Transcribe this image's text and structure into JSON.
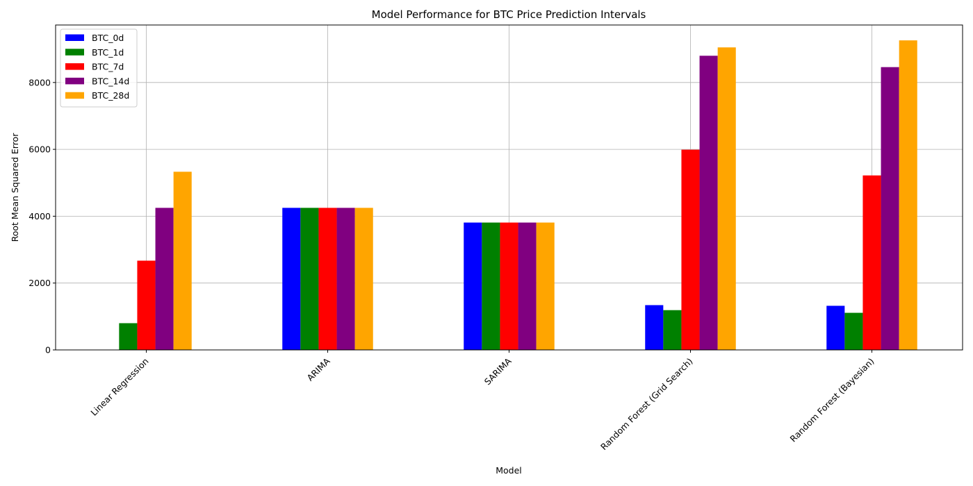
{
  "chart_data": {
    "type": "bar",
    "title": "Model Performance for BTC Price Prediction Intervals",
    "xlabel": "Model",
    "ylabel": "Root Mean Squared Error",
    "categories": [
      "Linear Regression",
      "ARIMA",
      "SARIMA",
      "Random Forest (Grid Search)",
      "Random Forest (Bayesian)"
    ],
    "series": [
      {
        "name": "BTC_0d",
        "color": "#0000ff",
        "values": [
          0,
          4250,
          3810,
          1340,
          1320
        ]
      },
      {
        "name": "BTC_1d",
        "color": "#008000",
        "values": [
          800,
          4250,
          3810,
          1190,
          1110
        ]
      },
      {
        "name": "BTC_7d",
        "color": "#ff0000",
        "values": [
          2670,
          4250,
          3810,
          5990,
          5220
        ]
      },
      {
        "name": "BTC_14d",
        "color": "#800080",
        "values": [
          4250,
          4250,
          3810,
          8800,
          8460
        ]
      },
      {
        "name": "BTC_28d",
        "color": "#ffa500",
        "values": [
          5330,
          4250,
          3810,
          9050,
          9260
        ]
      }
    ],
    "ylim": [
      0,
      9720
    ],
    "yticks": [
      0,
      2000,
      4000,
      6000,
      8000
    ],
    "grid": true,
    "legend_position": "top-left"
  }
}
